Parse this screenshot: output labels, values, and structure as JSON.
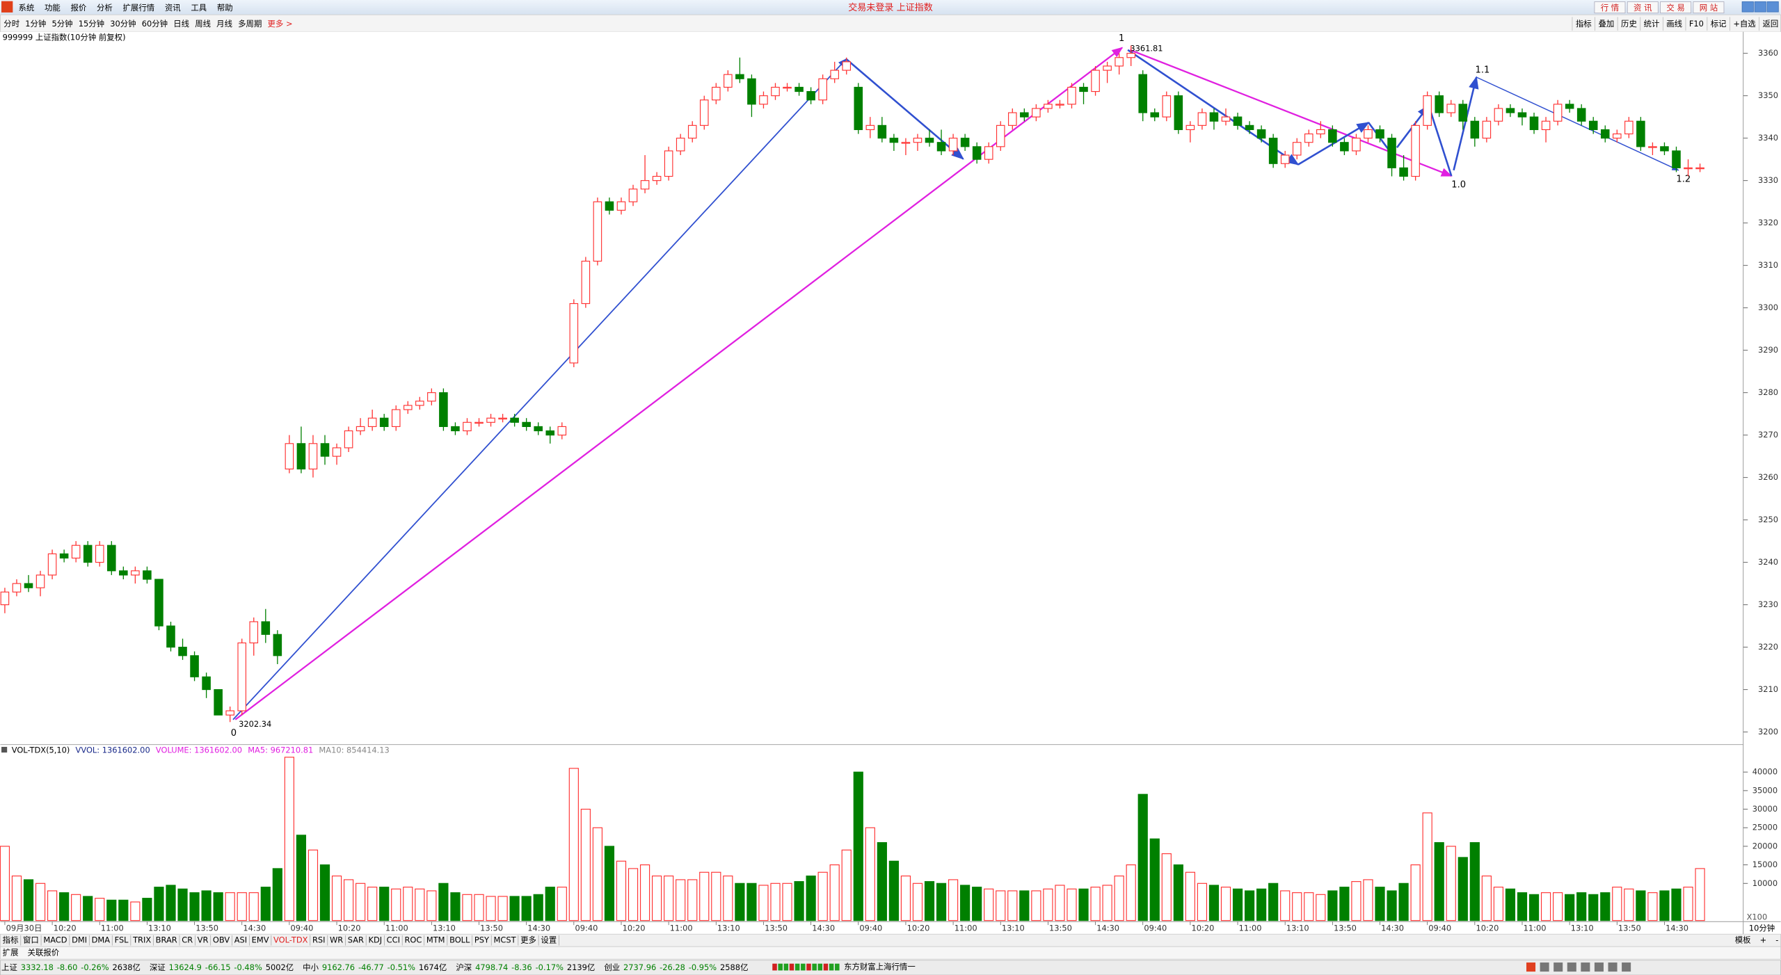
{
  "title_bar": {
    "menu": [
      "系统",
      "功能",
      "报价",
      "分析",
      "扩展行情",
      "资讯",
      "工具",
      "帮助"
    ],
    "center": "交易未登录 上证指数",
    "buttons": [
      "行 情",
      "资 讯",
      "交 易",
      "网 站"
    ]
  },
  "toolbar": {
    "periods": [
      "分时",
      "1分钟",
      "5分钟",
      "15分钟",
      "30分钟",
      "60分钟",
      "日线",
      "周线",
      "月线",
      "多周期",
      "更多 >"
    ],
    "right": [
      "指标",
      "叠加",
      "历史",
      "统计",
      "画线",
      "F10",
      "标记",
      "+自选",
      "返回"
    ]
  },
  "chart_header": "999999 上证指数(10分钟 前复权)",
  "annotations": {
    "waves": [
      "0",
      "1",
      "1.0",
      "1.1",
      "1.2"
    ],
    "low": 3202.34,
    "high": 3361.81
  },
  "volume_header": [
    "VOL-TDX(5,10)",
    "VVOL: 1361602.00",
    "VOLUME: 1361602.00",
    "MA5: 967210.81",
    "MA10: 854414.13"
  ],
  "axis_unit": "X100",
  "period_label": "10分钟",
  "indicator_tabs": [
    "指标",
    "窗口",
    "MACD",
    "DMI",
    "DMA",
    "FSL",
    "TRIX",
    "BRAR",
    "CR",
    "VR",
    "OBV",
    "ASI",
    "EMV",
    "VOL-TDX",
    "RSI",
    "WR",
    "SAR",
    "KDJ",
    "CCI",
    "ROC",
    "MTM",
    "BOLL",
    "PSY",
    "MCST",
    "更多",
    "设置"
  ],
  "tab_right": [
    "模板",
    "+",
    "-"
  ],
  "sub_tabs": [
    "扩展",
    "关联报价"
  ],
  "status_bar": {
    "indices": [
      [
        "上证",
        "3332.18",
        "-8.60",
        "-0.26%",
        "2638亿"
      ],
      [
        "深证",
        "13624.9",
        "-66.15",
        "-0.48%",
        "5002亿"
      ],
      [
        "中小",
        "9162.76",
        "-46.77",
        "-0.51%",
        "1674亿"
      ],
      [
        "沪深",
        "4798.74",
        "-8.36",
        "-0.17%",
        "2139亿"
      ],
      [
        "创业",
        "2737.96",
        "-26.28",
        "-0.95%",
        "2588亿"
      ]
    ],
    "feed": "东方财富上海行情一"
  },
  "chart_data": [
    {
      "type": "candlestick",
      "up_color": "#ff3232",
      "down_color": "#008000",
      "ylim": [
        3197.3,
        3362.4
      ],
      "yticks": [
        3200,
        3210,
        3220,
        3230,
        3240,
        3250,
        3260,
        3270,
        3280,
        3290,
        3300,
        3310,
        3320,
        3330,
        3340,
        3350,
        3360
      ],
      "ohlc": [
        [
          3230,
          3234,
          3228,
          3233
        ],
        [
          3233,
          3236,
          3232,
          3235
        ],
        [
          3235,
          3237,
          3233,
          3234
        ],
        [
          3234,
          3238,
          3232,
          3237
        ],
        [
          3237,
          3243,
          3236,
          3242
        ],
        [
          3242,
          3243,
          3240,
          3241
        ],
        [
          3241,
          3245,
          3240,
          3244
        ],
        [
          3244,
          3245,
          3239,
          3240
        ],
        [
          3240,
          3245,
          3239,
          3244
        ],
        [
          3244,
          3245,
          3237,
          3238
        ],
        [
          3238,
          3239,
          3236,
          3237
        ],
        [
          3237,
          3239,
          3235,
          3238
        ],
        [
          3238,
          3239,
          3235,
          3236
        ],
        [
          3236,
          3236,
          3224,
          3225
        ],
        [
          3225,
          3226,
          3219,
          3220
        ],
        [
          3220,
          3222,
          3217,
          3218
        ],
        [
          3218,
          3219,
          3212,
          3213
        ],
        [
          3213,
          3214,
          3208,
          3210
        ],
        [
          3210,
          3210,
          3204,
          3204
        ],
        [
          3204,
          3206,
          3202.34,
          3205
        ],
        [
          3205,
          3222,
          3204,
          3221
        ],
        [
          3221,
          3227,
          3218,
          3226
        ],
        [
          3226,
          3229,
          3221,
          3223
        ],
        [
          3223,
          3224,
          3216,
          3218
        ],
        [
          3262,
          3270,
          3261,
          3268
        ],
        [
          3268,
          3272,
          3261,
          3262
        ],
        [
          3262,
          3270,
          3260,
          3268
        ],
        [
          3268,
          3270,
          3263,
          3265
        ],
        [
          3265,
          3268,
          3263,
          3267
        ],
        [
          3267,
          3272,
          3266,
          3271
        ],
        [
          3271,
          3274,
          3270,
          3272
        ],
        [
          3272,
          3276,
          3271,
          3274
        ],
        [
          3274,
          3275,
          3271,
          3272
        ],
        [
          3272,
          3277,
          3271,
          3276
        ],
        [
          3276,
          3278,
          3275,
          3277
        ],
        [
          3277,
          3279,
          3276,
          3278
        ],
        [
          3278,
          3281,
          3277,
          3280
        ],
        [
          3280,
          3281,
          3271,
          3272
        ],
        [
          3272,
          3273,
          3270,
          3271
        ],
        [
          3271,
          3274,
          3270,
          3273
        ],
        [
          3273,
          3274,
          3272,
          3273
        ],
        [
          3273,
          3275,
          3272,
          3274
        ],
        [
          3274,
          3275,
          3273,
          3274
        ],
        [
          3274,
          3275,
          3272,
          3273
        ],
        [
          3273,
          3274,
          3271,
          3272
        ],
        [
          3272,
          3273,
          3270,
          3271
        ],
        [
          3271,
          3272,
          3268,
          3270
        ],
        [
          3270,
          3273,
          3269,
          3272
        ],
        [
          3287,
          3302,
          3286,
          3301
        ],
        [
          3301,
          3312,
          3300,
          3311
        ],
        [
          3311,
          3326,
          3310,
          3325
        ],
        [
          3325,
          3326,
          3322,
          3323
        ],
        [
          3323,
          3326,
          3322,
          3325
        ],
        [
          3325,
          3329,
          3324,
          3328
        ],
        [
          3328,
          3336,
          3327,
          3330
        ],
        [
          3330,
          3332,
          3329,
          3331
        ],
        [
          3331,
          3338,
          3330,
          3337
        ],
        [
          3337,
          3341,
          3336,
          3340
        ],
        [
          3340,
          3344,
          3339,
          3343
        ],
        [
          3343,
          3350,
          3342,
          3349
        ],
        [
          3349,
          3353,
          3348,
          3352
        ],
        [
          3352,
          3356,
          3351,
          3355
        ],
        [
          3355,
          3359,
          3353,
          3354
        ],
        [
          3354,
          3355,
          3345,
          3348
        ],
        [
          3348,
          3351,
          3347,
          3350
        ],
        [
          3350,
          3353,
          3349,
          3352
        ],
        [
          3352,
          3353,
          3351,
          3352
        ],
        [
          3352,
          3353,
          3350,
          3351
        ],
        [
          3351,
          3352,
          3348,
          3349
        ],
        [
          3349,
          3355,
          3348,
          3354
        ],
        [
          3354,
          3358,
          3353,
          3356
        ],
        [
          3356,
          3359,
          3355,
          3358
        ],
        [
          3352,
          3353,
          3341,
          3342
        ],
        [
          3342,
          3345,
          3340,
          3343
        ],
        [
          3343,
          3345,
          3339,
          3340
        ],
        [
          3340,
          3341,
          3337,
          3339
        ],
        [
          3339,
          3340,
          3336,
          3339
        ],
        [
          3339,
          3341,
          3337,
          3340
        ],
        [
          3340,
          3342,
          3338,
          3339
        ],
        [
          3339,
          3342,
          3336,
          3337
        ],
        [
          3337,
          3341,
          3336,
          3340
        ],
        [
          3340,
          3341,
          3337,
          3338
        ],
        [
          3338,
          3339,
          3334,
          3335
        ],
        [
          3335,
          3339,
          3334,
          3338
        ],
        [
          3338,
          3344,
          3337,
          3343
        ],
        [
          3343,
          3347,
          3342,
          3346
        ],
        [
          3346,
          3347,
          3344,
          3345
        ],
        [
          3345,
          3348,
          3344,
          3347
        ],
        [
          3347,
          3349,
          3346,
          3348
        ],
        [
          3348,
          3349,
          3347,
          3348
        ],
        [
          3348,
          3353,
          3347,
          3352
        ],
        [
          3352,
          3353,
          3348,
          3351
        ],
        [
          3351,
          3357,
          3350,
          3356
        ],
        [
          3356,
          3358,
          3353,
          3357
        ],
        [
          3357,
          3360,
          3355,
          3359
        ],
        [
          3359,
          3361.81,
          3357,
          3360
        ],
        [
          3355,
          3356,
          3344,
          3346
        ],
        [
          3346,
          3347,
          3344,
          3345
        ],
        [
          3345,
          3351,
          3344,
          3350
        ],
        [
          3350,
          3351,
          3341,
          3342
        ],
        [
          3342,
          3344,
          3339,
          3343
        ],
        [
          3343,
          3347,
          3342,
          3346
        ],
        [
          3346,
          3347,
          3342,
          3344
        ],
        [
          3344,
          3347,
          3343,
          3345
        ],
        [
          3345,
          3346,
          3342,
          3343
        ],
        [
          3343,
          3344,
          3341,
          3342
        ],
        [
          3342,
          3343,
          3339,
          3340
        ],
        [
          3340,
          3341,
          3333,
          3334
        ],
        [
          3334,
          3337,
          3333,
          3336
        ],
        [
          3336,
          3340,
          3335,
          3339
        ],
        [
          3339,
          3342,
          3338,
          3341
        ],
        [
          3341,
          3344,
          3340,
          3342
        ],
        [
          3342,
          3343,
          3338,
          3339
        ],
        [
          3339,
          3340,
          3336,
          3337
        ],
        [
          3337,
          3341,
          3336,
          3340
        ],
        [
          3340,
          3343,
          3339,
          3342
        ],
        [
          3342,
          3343,
          3339,
          3340
        ],
        [
          3340,
          3341,
          3331,
          3333
        ],
        [
          3333,
          3336,
          3330,
          3331
        ],
        [
          3331,
          3344,
          3330,
          3343
        ],
        [
          3343,
          3351,
          3342,
          3350
        ],
        [
          3350,
          3351,
          3345,
          3346
        ],
        [
          3346,
          3349,
          3345,
          3348
        ],
        [
          3348,
          3349,
          3342,
          3344
        ],
        [
          3344,
          3345,
          3338,
          3340
        ],
        [
          3340,
          3345,
          3339,
          3344
        ],
        [
          3344,
          3348,
          3343,
          3347
        ],
        [
          3347,
          3348,
          3345,
          3346
        ],
        [
          3346,
          3347,
          3343,
          3345
        ],
        [
          3345,
          3346,
          3341,
          3342
        ],
        [
          3342,
          3345,
          3339,
          3344
        ],
        [
          3344,
          3349,
          3343,
          3348
        ],
        [
          3348,
          3349,
          3346,
          3347
        ],
        [
          3347,
          3348,
          3343,
          3344
        ],
        [
          3344,
          3345,
          3341,
          3342
        ],
        [
          3342,
          3343,
          3339,
          3340
        ],
        [
          3340,
          3342,
          3339,
          3341
        ],
        [
          3341,
          3345,
          3340,
          3344
        ],
        [
          3344,
          3345,
          3337,
          3338
        ],
        [
          3338,
          3339,
          3336,
          3338
        ],
        [
          3338,
          3339,
          3336,
          3337
        ],
        [
          3337,
          3338,
          3332,
          3333
        ],
        [
          3333,
          3335,
          3331,
          3333
        ],
        [
          3333,
          3334,
          3332,
          3333
        ]
      ]
    },
    {
      "type": "bar",
      "ylim": [
        0,
        44650
      ],
      "yticks": [
        10000,
        15000,
        20000,
        25000,
        30000,
        35000,
        40000
      ],
      "categories": [
        "09月30日",
        null,
        null,
        null,
        "10:20",
        null,
        null,
        null,
        "11:00",
        null,
        null,
        null,
        "13:10",
        null,
        null,
        null,
        "13:50",
        null,
        null,
        null,
        "14:30",
        null,
        null,
        null,
        "09:40",
        null,
        null,
        null,
        "10:20",
        null,
        null,
        null,
        "11:00",
        null,
        null,
        null,
        "13:10",
        null,
        null,
        null,
        "13:50",
        null,
        null,
        null,
        "14:30",
        null,
        null,
        null,
        "09:40",
        null,
        null,
        null,
        "10:20",
        null,
        null,
        null,
        "11:00",
        null,
        null,
        null,
        "13:10",
        null,
        null,
        null,
        "13:50",
        null,
        null,
        null,
        "14:30",
        null,
        null,
        null,
        "09:40",
        null,
        null,
        null,
        "10:20",
        null,
        null,
        null,
        "11:00",
        null,
        null,
        null,
        "13:10",
        null,
        null,
        null,
        "13:50",
        null,
        null,
        null,
        "14:30",
        null,
        null,
        null,
        "09:40",
        null,
        null,
        null,
        "10:20",
        null,
        null,
        null,
        "11:00",
        null,
        null,
        null,
        "13:10",
        null,
        null,
        null,
        "13:50",
        null,
        null,
        null,
        "14:30",
        null,
        null,
        null,
        "09:40",
        null,
        null,
        null,
        "10:20",
        null,
        null,
        null,
        "11:00",
        null,
        null,
        null,
        "13:10",
        null,
        null,
        null,
        "13:50",
        null,
        null,
        null,
        "14:30",
        null,
        null,
        null
      ],
      "values": [
        20000,
        12000,
        11000,
        10000,
        8000,
        7500,
        7000,
        6500,
        6000,
        5500,
        5500,
        5000,
        6000,
        9000,
        9500,
        8500,
        7500,
        8000,
        7500,
        7500,
        7500,
        7500,
        9000,
        14000,
        44000,
        23000,
        19000,
        15000,
        12000,
        11000,
        10000,
        9000,
        9000,
        8500,
        9000,
        8500,
        8000,
        10000,
        7500,
        7000,
        7000,
        6500,
        6500,
        6500,
        6500,
        7000,
        9000,
        9000,
        41000,
        30000,
        25000,
        20000,
        16000,
        14000,
        15000,
        12000,
        12000,
        11000,
        11000,
        13000,
        13000,
        12000,
        10000,
        10000,
        9500,
        10000,
        10000,
        10500,
        12000,
        13000,
        15000,
        19000,
        40000,
        25000,
        21000,
        16000,
        12000,
        10000,
        10500,
        10000,
        11000,
        9500,
        9000,
        8500,
        8000,
        8000,
        8000,
        8000,
        8500,
        9500,
        8500,
        8500,
        9000,
        9500,
        12000,
        15000,
        34000,
        22000,
        18000,
        15000,
        13000,
        10000,
        9500,
        9000,
        8500,
        8000,
        8500,
        10000,
        8000,
        7500,
        7500,
        7000,
        8000,
        9000,
        10500,
        11000,
        9000,
        8000,
        10000,
        15000,
        29000,
        21000,
        20000,
        17000,
        21000,
        12000,
        9000,
        8500,
        7500,
        7000,
        7500,
        7500,
        7000,
        7500,
        7000,
        7500,
        9000,
        8500,
        8000,
        7500,
        8000,
        8500,
        9000,
        14000
      ]
    }
  ]
}
